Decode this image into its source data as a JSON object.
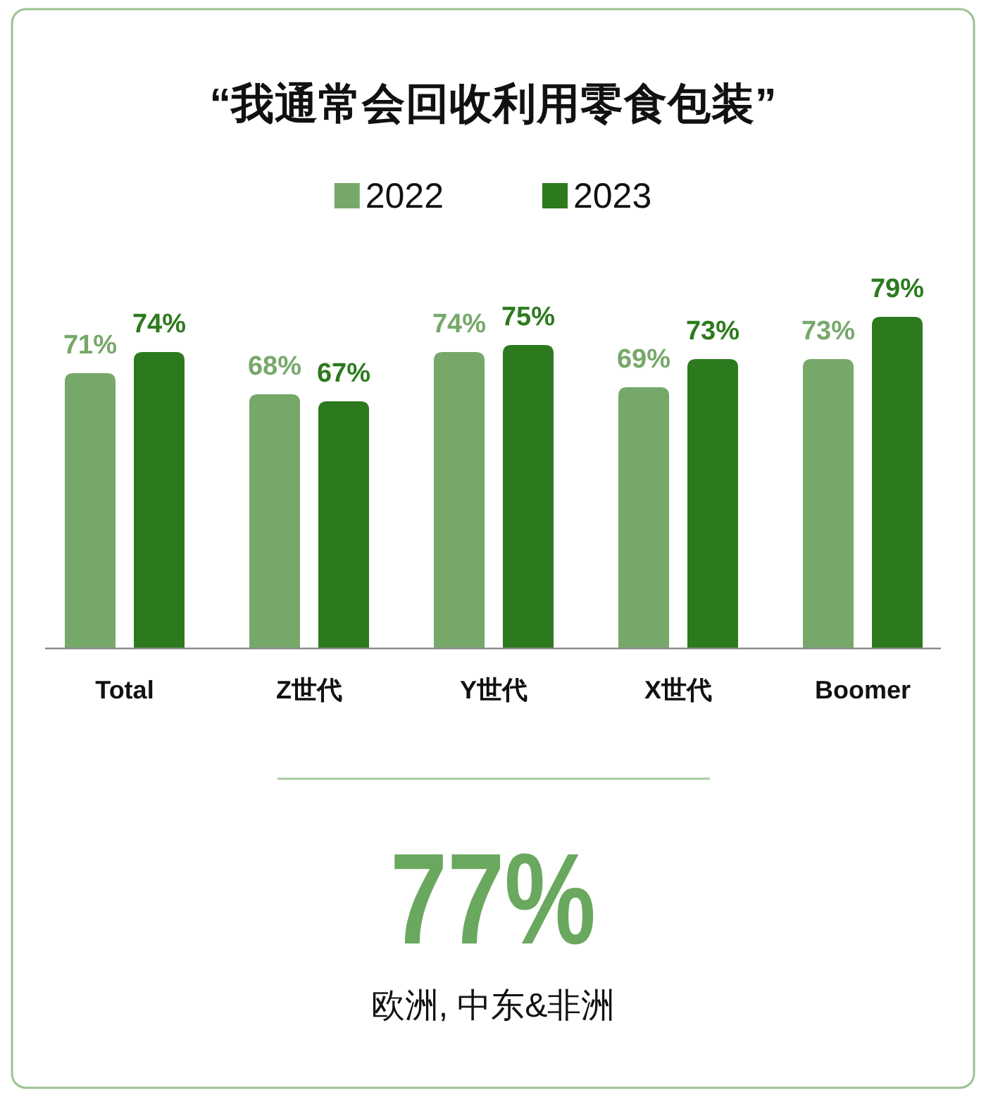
{
  "chart_data": {
    "type": "bar",
    "title": "“我通常会回收利用零食包装”",
    "categories": [
      "Total",
      "Z世代",
      "Y世代",
      "X世代",
      "Boomer"
    ],
    "series": [
      {
        "name": "2022",
        "color": "#76a86a",
        "values": [
          71,
          68,
          74,
          69,
          73
        ],
        "value_labels": [
          "71%",
          "68%",
          "74%",
          "69%",
          "73%"
        ]
      },
      {
        "name": "2023",
        "color": "#2c7a1d",
        "values": [
          74,
          67,
          75,
          73,
          79
        ],
        "value_labels": [
          "74%",
          "67%",
          "75%",
          "73%",
          "79%"
        ]
      }
    ],
    "ylim": [
      32,
      79
    ],
    "tick_labels": "x",
    "legend": "top",
    "annotations": [
      "77%",
      "欧洲, 中东&非洲"
    ]
  }
}
